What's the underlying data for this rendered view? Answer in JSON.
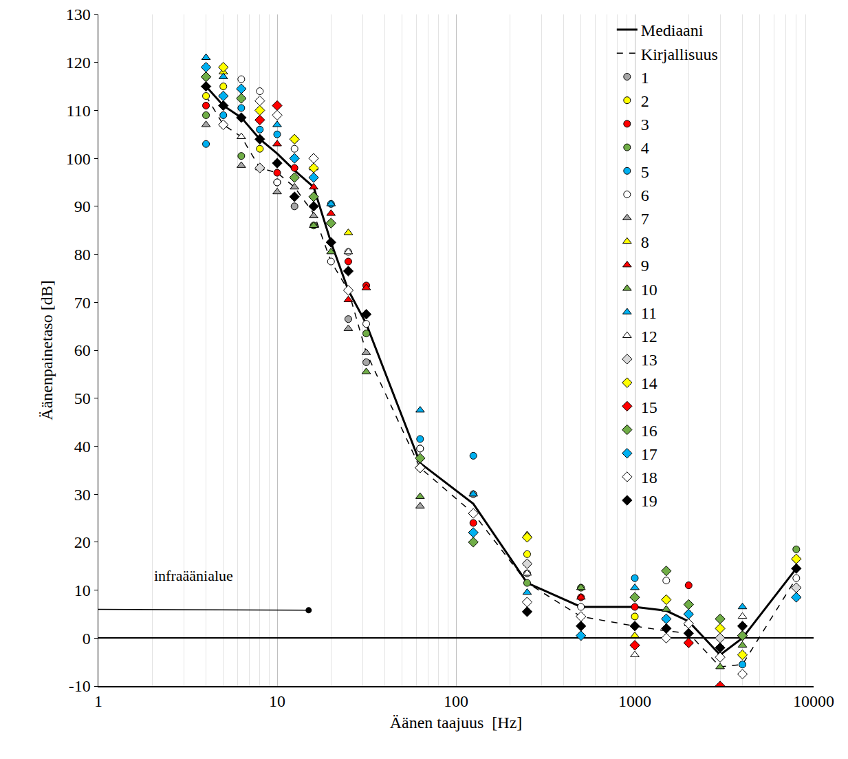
{
  "chart_data": {
    "type": "scatter",
    "x_label": "Äänen taajuus  [Hz]",
    "y_label": "Äänenpainetaso [dB]",
    "x": [
      4,
      5,
      6.3,
      8,
      10,
      12.5,
      16,
      20,
      25,
      31.5,
      63,
      125,
      250,
      500,
      1000,
      1500,
      2000,
      3000,
      4000,
      8000
    ],
    "xlim": [
      1,
      10000
    ],
    "xticks": [
      1,
      10,
      100,
      1000,
      10000
    ],
    "ylim": [
      -10,
      130
    ],
    "yticks": [
      -10,
      0,
      10,
      20,
      30,
      40,
      50,
      60,
      70,
      80,
      90,
      100,
      110,
      120,
      130
    ],
    "log": "x",
    "grid": "x",
    "legend": "upper right",
    "series": [
      {
        "name": "Mediaani",
        "type": "line",
        "color": "#000000",
        "line_style": "solid",
        "values": [
          115,
          111,
          108.5,
          104,
          101,
          97.5,
          94,
          82.5,
          72.5,
          65.5,
          36.5,
          28,
          11.5,
          6.5,
          6.5,
          5.7,
          3.5,
          -3.5,
          0,
          14.5
        ]
      },
      {
        "name": "Kirjallisuus",
        "type": "line",
        "color": "#000000",
        "line_style": "dashed",
        "values": [
          113,
          107,
          104.5,
          98,
          97,
          94,
          88.5,
          78.5,
          72.5,
          59.5,
          35.5,
          26,
          11.5,
          4.5,
          2.5,
          1.5,
          1,
          -6,
          -5.5,
          12.5
        ]
      },
      {
        "name": "1",
        "type": "scatter",
        "marker": "circle",
        "color": "#a6a6a6",
        "values": [
          117,
          null,
          null,
          null,
          95,
          90,
          null,
          null,
          66.5,
          57.5,
          39.5,
          30,
          13.5,
          null,
          null,
          null,
          null,
          null,
          null,
          null
        ]
      },
      {
        "name": "2",
        "type": "scatter",
        "marker": "circle",
        "color": "#ffff00",
        "values": [
          113,
          115,
          null,
          102,
          null,
          104,
          null,
          86.5,
          null,
          null,
          null,
          null,
          17.5,
          null,
          4.5,
          8,
          null,
          null,
          null,
          16.5
        ]
      },
      {
        "name": "3",
        "type": "scatter",
        "marker": "circle",
        "color": "#ff0000",
        "values": [
          111,
          null,
          null,
          null,
          97,
          98,
          null,
          null,
          78.5,
          73.5,
          null,
          24,
          null,
          8.5,
          6.5,
          null,
          11,
          null,
          null,
          null
        ]
      },
      {
        "name": "4",
        "type": "scatter",
        "marker": "circle",
        "color": "#70ad47",
        "values": [
          109,
          null,
          100.5,
          null,
          null,
          null,
          86,
          null,
          null,
          63.5,
          37.5,
          null,
          11.5,
          10.5,
          8.5,
          null,
          7,
          null,
          null,
          18.5
        ]
      },
      {
        "name": "5",
        "type": "scatter",
        "marker": "circle",
        "color": "#00b0f0",
        "values": [
          103,
          109,
          110.5,
          106,
          105,
          100,
          96,
          90.5,
          null,
          null,
          41.5,
          38,
          null,
          null,
          12.5,
          4,
          5,
          null,
          -5.5,
          null
        ]
      },
      {
        "name": "6",
        "type": "scatter",
        "marker": "circle",
        "color": "#ffffff",
        "values": [
          null,
          107,
          116.5,
          114,
          95,
          102,
          null,
          78.5,
          80.5,
          65.5,
          39.5,
          null,
          15.5,
          6.5,
          null,
          12,
          null,
          0,
          null,
          12.5
        ]
      },
      {
        "name": "7",
        "type": "scatter",
        "marker": "triangle",
        "color": "#a6a6a6",
        "values": [
          107,
          null,
          98.5,
          98,
          93,
          94,
          88,
          null,
          64.5,
          59.5,
          27.5,
          null,
          null,
          null,
          null,
          null,
          null,
          null,
          null,
          null
        ]
      },
      {
        "name": "8",
        "type": "scatter",
        "marker": "triangle",
        "color": "#ffff00",
        "values": [
          null,
          118,
          null,
          null,
          null,
          null,
          98,
          null,
          84.5,
          null,
          null,
          null,
          21.5,
          null,
          0.5,
          null,
          null,
          null,
          null,
          null
        ]
      },
      {
        "name": "9",
        "type": "scatter",
        "marker": "triangle",
        "color": "#ff0000",
        "values": [
          null,
          null,
          null,
          null,
          103,
          null,
          94,
          88.5,
          70.5,
          73,
          null,
          null,
          null,
          8.5,
          null,
          null,
          null,
          null,
          null,
          null
        ]
      },
      {
        "name": "10",
        "type": "scatter",
        "marker": "triangle",
        "color": "#70ad47",
        "values": [
          null,
          null,
          null,
          null,
          null,
          null,
          86,
          80.5,
          null,
          55.5,
          29.5,
          null,
          null,
          10.5,
          null,
          6,
          3,
          -6,
          -1.5,
          null
        ]
      },
      {
        "name": "11",
        "type": "scatter",
        "marker": "triangle",
        "color": "#00b0f0",
        "values": [
          121,
          117,
          null,
          null,
          107,
          null,
          null,
          90.5,
          null,
          null,
          47.5,
          30,
          9.5,
          null,
          10.5,
          null,
          null,
          null,
          6.5,
          null
        ]
      },
      {
        "name": "12",
        "type": "scatter",
        "marker": "triangle",
        "color": "#ffffff",
        "values": [
          null,
          null,
          104.5,
          null,
          null,
          null,
          null,
          null,
          80.5,
          null,
          null,
          null,
          13.5,
          null,
          -3.5,
          null,
          null,
          null,
          4.5,
          null
        ]
      },
      {
        "name": "13",
        "type": "scatter",
        "marker": "diamond",
        "color": "#d9d9d9",
        "values": [
          117,
          null,
          null,
          98,
          null,
          null,
          null,
          null,
          null,
          null,
          null,
          null,
          15.5,
          null,
          null,
          null,
          null,
          0,
          null,
          10.5
        ]
      },
      {
        "name": "14",
        "type": "scatter",
        "marker": "diamond",
        "color": "#ffff00",
        "values": [
          null,
          119,
          null,
          110,
          null,
          104,
          98,
          null,
          null,
          null,
          35.5,
          null,
          21,
          null,
          null,
          8,
          null,
          2,
          -3.5,
          16.5
        ]
      },
      {
        "name": "15",
        "type": "scatter",
        "marker": "diamond",
        "color": "#ff0000",
        "values": [
          null,
          null,
          null,
          108,
          111,
          null,
          null,
          null,
          null,
          null,
          null,
          null,
          null,
          null,
          -1.5,
          null,
          -1,
          -10,
          0.5,
          null
        ]
      },
      {
        "name": "16",
        "type": "scatter",
        "marker": "diamond",
        "color": "#70ad47",
        "values": [
          117,
          null,
          112.5,
          null,
          null,
          96,
          92,
          86.5,
          null,
          null,
          37.5,
          20,
          null,
          null,
          8.5,
          14,
          7,
          4,
          0.5,
          null
        ]
      },
      {
        "name": "17",
        "type": "scatter",
        "marker": "diamond",
        "color": "#00b0f0",
        "values": [
          119,
          113,
          114.5,
          null,
          null,
          100,
          96,
          null,
          null,
          null,
          null,
          22,
          null,
          0.5,
          null,
          4,
          5,
          null,
          null,
          8.5
        ]
      },
      {
        "name": "18",
        "type": "scatter",
        "marker": "diamond",
        "color": "#ffffff",
        "values": [
          null,
          107,
          null,
          112,
          109,
          null,
          100,
          null,
          72.5,
          null,
          35.5,
          26,
          7.5,
          4.5,
          null,
          0,
          3,
          -4,
          -7.5,
          null
        ]
      },
      {
        "name": "19",
        "type": "scatter",
        "marker": "diamond",
        "color": "#000000",
        "values": [
          115,
          111,
          108.5,
          104,
          99,
          92,
          90,
          82.5,
          76.5,
          67.5,
          null,
          null,
          5.5,
          2.5,
          2.5,
          2,
          1,
          -2,
          2.5,
          14.5
        ]
      }
    ],
    "annotations": [
      {
        "text": "infraäänialue",
        "x": 3.4,
        "y": 11,
        "line_x": [
          0.85,
          15
        ],
        "line_y": [
          6,
          5.8
        ]
      }
    ]
  }
}
